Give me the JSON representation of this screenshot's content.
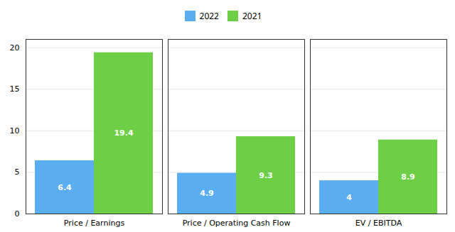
{
  "chart_data": {
    "type": "bar",
    "categories": [
      "Price / Earnings",
      "Price / Operating Cash Flow",
      "EV / EBITDA"
    ],
    "series": [
      {
        "name": "2022",
        "color": "#5aadee",
        "values": [
          6.4,
          4.9,
          4.0
        ]
      },
      {
        "name": "2021",
        "color": "#6dcf45",
        "values": [
          19.4,
          9.3,
          8.9
        ]
      }
    ],
    "ylim": [
      0,
      21
    ],
    "yticks": [
      0,
      5,
      10,
      15,
      20
    ],
    "grid": true,
    "legend": "top",
    "data_labels": true
  }
}
